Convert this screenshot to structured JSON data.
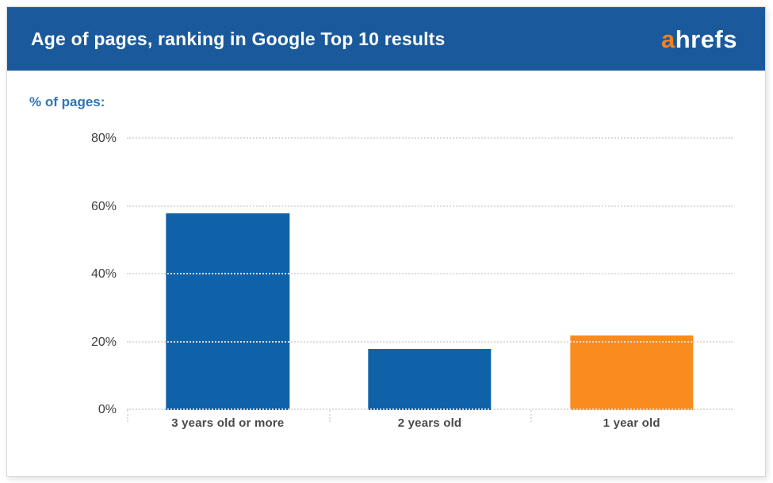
{
  "header": {
    "title": "Age of pages, ranking in Google Top 10 results",
    "logo": {
      "first_letter": "a",
      "rest": "hrefs"
    }
  },
  "chart_data": {
    "type": "bar",
    "title": "Age of pages, ranking in Google Top 10 results",
    "ylabel": "% of pages:",
    "xlabel": "",
    "categories": [
      "3 years old or more",
      "2 years old",
      "1 year old"
    ],
    "values": [
      58,
      18,
      22
    ],
    "bar_colors": [
      "#0f62a8",
      "#0f62a8",
      "#f98b1f"
    ],
    "ylim": [
      0,
      80
    ],
    "yticks": [
      0,
      20,
      40,
      60,
      80
    ],
    "ytick_labels": [
      "0%",
      "20%",
      "40%",
      "60%",
      "80%"
    ],
    "grid": "horizontal dotted gridlines on, vertical off",
    "legend": "none"
  },
  "colors": {
    "header_bg": "#1a5a9c",
    "bar_blue": "#0f62a8",
    "bar_orange": "#f98b1f",
    "logo_orange": "#f58120",
    "y_axis_title_blue": "#2e75b6",
    "tick_label_gray": "#3f3f3f",
    "gridline_gray": "#dcdcdc"
  }
}
